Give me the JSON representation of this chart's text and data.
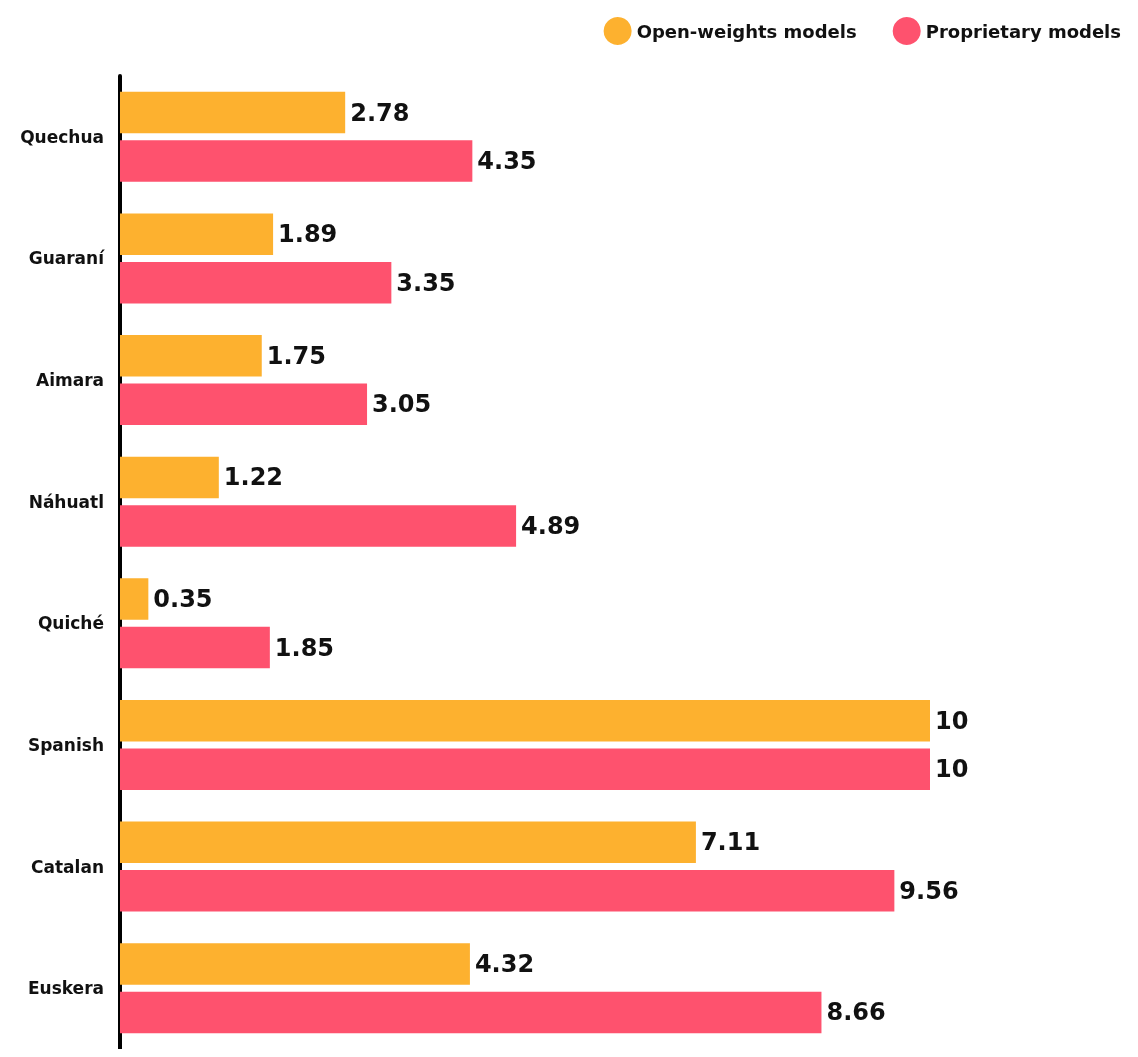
{
  "chart_data": {
    "type": "bar",
    "orientation": "horizontal",
    "categories": [
      "Quechua",
      "Guaraní",
      "Aimara",
      "Náhuatl",
      "Quiché",
      "Spanish",
      "Catalan",
      "Euskera"
    ],
    "series": [
      {
        "name": "Open-weights models",
        "color": "#fdb12f",
        "values": [
          2.78,
          1.89,
          1.75,
          1.22,
          0.35,
          10,
          7.11,
          4.32
        ]
      },
      {
        "name": "Proprietary models",
        "color": "#fe526e",
        "values": [
          4.35,
          3.35,
          3.05,
          4.89,
          1.85,
          10,
          9.56,
          8.66
        ]
      }
    ],
    "data_labels": true,
    "legend": "top right",
    "grid": false
  }
}
